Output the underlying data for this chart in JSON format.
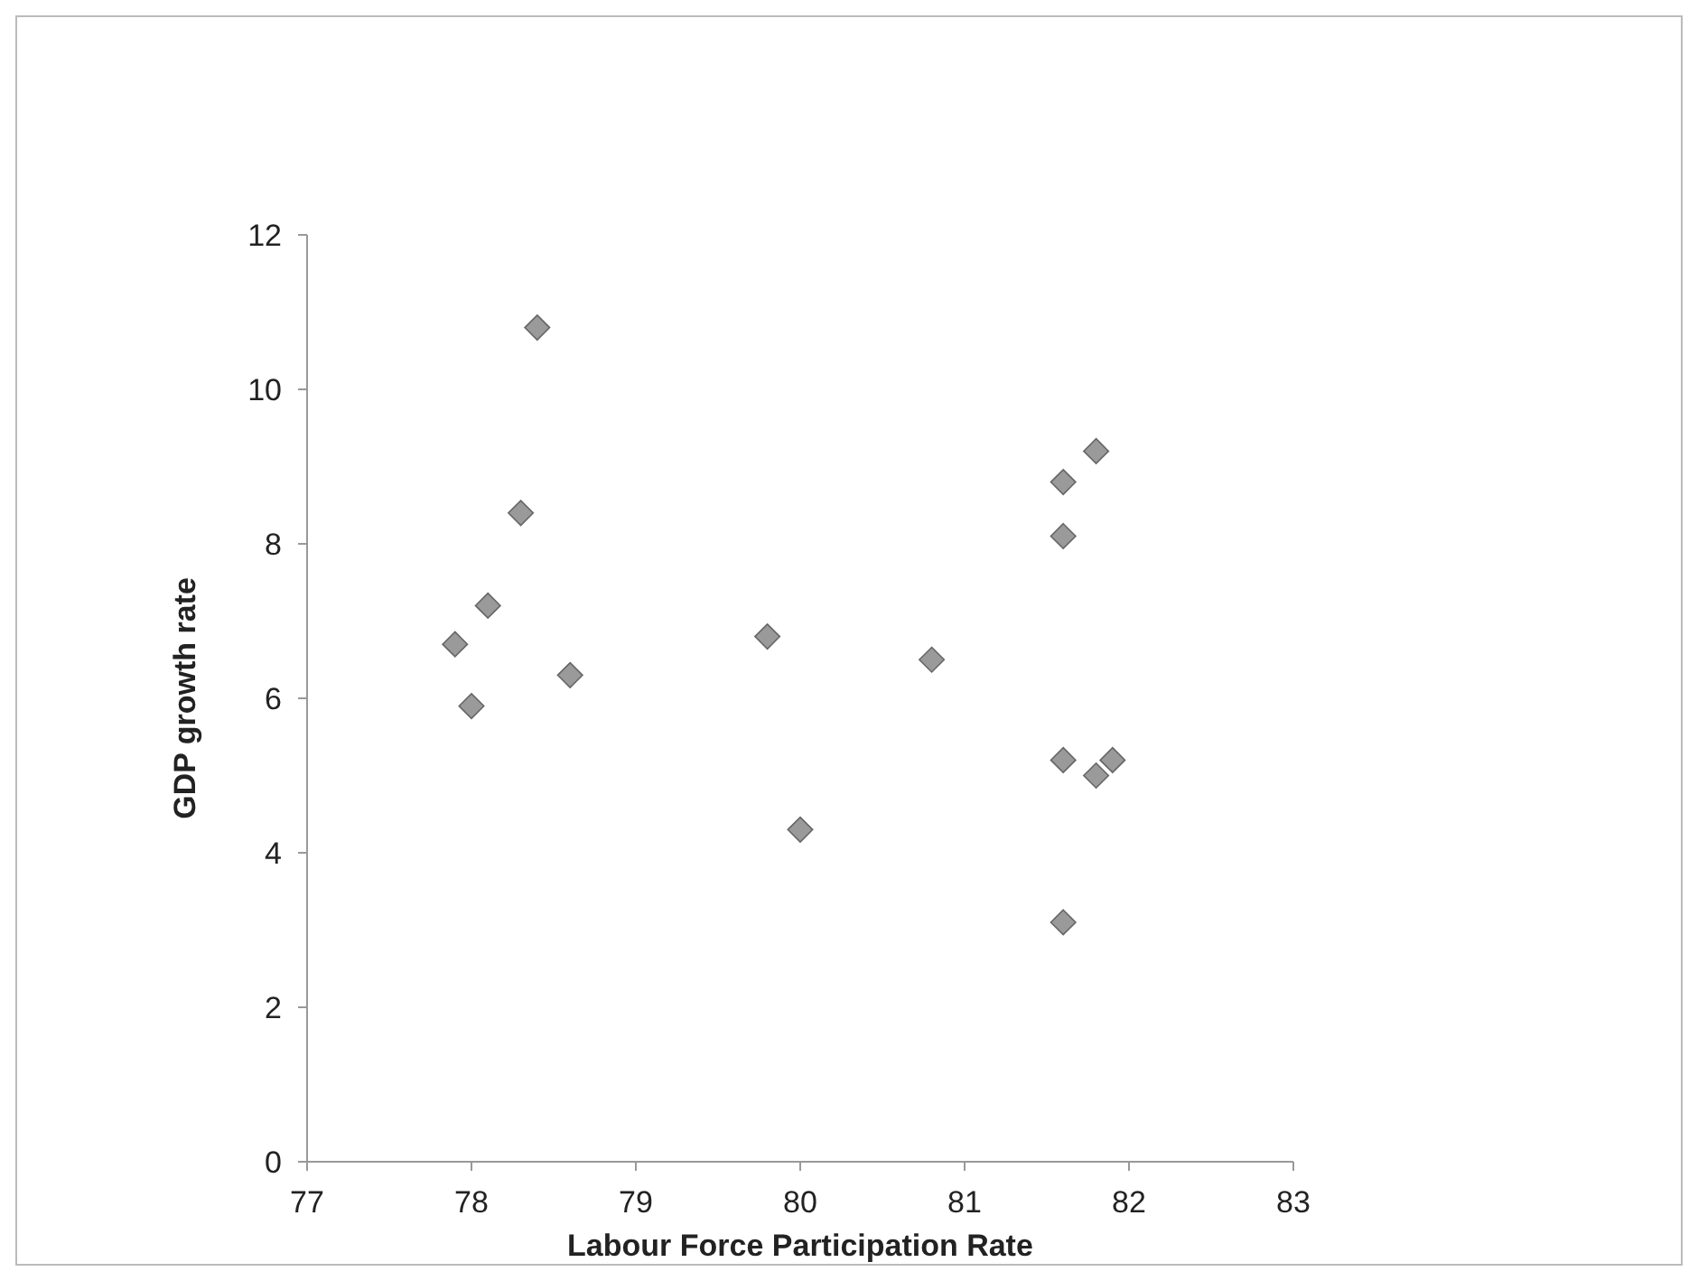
{
  "chart_data": {
    "type": "scatter",
    "xlabel": "Labour Force Participation Rate",
    "ylabel": "GDP growth rate",
    "xlim": [
      77,
      83
    ],
    "xticks": [
      77,
      78,
      79,
      80,
      81,
      82,
      83
    ],
    "ylim": [
      0,
      12
    ],
    "yticks": [
      0,
      2,
      4,
      6,
      8,
      10,
      12
    ],
    "grid": false,
    "marker": "diamond",
    "series": [
      {
        "color": "#9a9a9a",
        "x": [
          77.9,
          78.0,
          78.1,
          78.3,
          78.4,
          78.6,
          79.8,
          80.0,
          80.8,
          81.6,
          81.6,
          81.6,
          81.6,
          81.8,
          81.9,
          81.8
        ],
        "values": [
          6.7,
          5.9,
          7.2,
          8.4,
          10.8,
          6.3,
          6.8,
          4.3,
          6.5,
          8.8,
          8.1,
          5.2,
          3.1,
          5.0,
          5.2,
          9.2
        ]
      }
    ]
  }
}
